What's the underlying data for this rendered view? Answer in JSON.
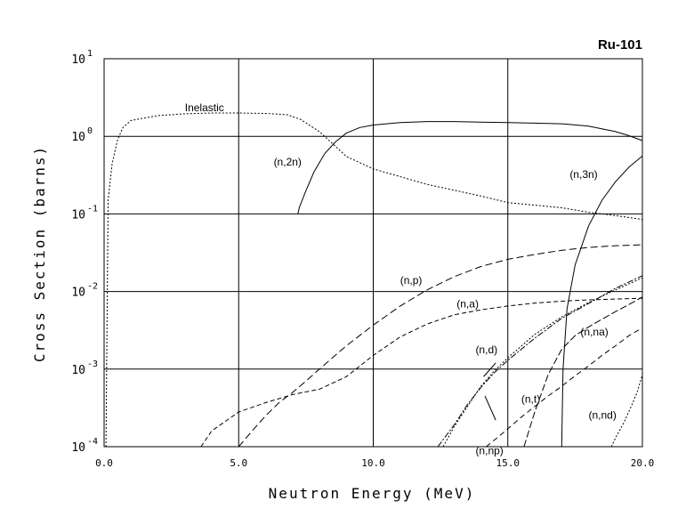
{
  "chart_data": {
    "type": "line",
    "title": "Ru-101",
    "xlabel": "Neutron Energy (MeV)",
    "ylabel": "Cross Section (barns)",
    "xlim": [
      0,
      20
    ],
    "ylim": [
      0.0001,
      10
    ],
    "yscale": "log",
    "grid": true,
    "x_ticks": [
      "0.0",
      "5.0",
      "10.0",
      "15.0",
      "20.0"
    ],
    "y_ticks": [
      {
        "base": "10",
        "exp": "1"
      },
      {
        "base": "10",
        "exp": "0"
      },
      {
        "base": "10",
        "exp": "-1"
      },
      {
        "base": "10",
        "exp": "-2"
      },
      {
        "base": "10",
        "exp": "-3"
      },
      {
        "base": "10",
        "exp": "-4"
      }
    ],
    "series": [
      {
        "name": "Inelastic",
        "dash": "2,2",
        "x": [
          0.07,
          0.15,
          0.3,
          0.5,
          0.7,
          1.0,
          2.0,
          3.0,
          4.0,
          5.0,
          6.0,
          6.8,
          7.3,
          8.0,
          8.5,
          9.0,
          10.0,
          12.0,
          14.0,
          15.0,
          17.0,
          18.0,
          19.0,
          20.0
        ],
        "y": [
          0.0001,
          0.15,
          0.45,
          0.9,
          1.3,
          1.6,
          1.85,
          1.95,
          2.0,
          2.0,
          1.97,
          1.9,
          1.65,
          1.15,
          0.8,
          0.55,
          0.38,
          0.24,
          0.17,
          0.14,
          0.12,
          0.105,
          0.095,
          0.085
        ]
      },
      {
        "name": "(n,2n)",
        "dash": "",
        "x": [
          7.2,
          7.25,
          7.5,
          7.8,
          8.2,
          8.6,
          9.0,
          9.5,
          10.0,
          11.0,
          12.0,
          13.0,
          14.0,
          15.0,
          16.0,
          17.0,
          18.0,
          19.0,
          19.5,
          20.0
        ],
        "y": [
          0.1,
          0.12,
          0.2,
          0.35,
          0.6,
          0.85,
          1.1,
          1.3,
          1.4,
          1.5,
          1.55,
          1.55,
          1.52,
          1.5,
          1.48,
          1.45,
          1.35,
          1.15,
          1.02,
          0.88
        ]
      },
      {
        "name": "(n,3n)",
        "dash": "",
        "x": [
          17.0,
          17.05,
          17.2,
          17.5,
          18.0,
          18.5,
          19.0,
          19.5,
          20.0
        ],
        "y": [
          0.0001,
          0.001,
          0.006,
          0.022,
          0.07,
          0.15,
          0.26,
          0.4,
          0.56
        ]
      },
      {
        "name": "(n,p)",
        "dash": "8,4",
        "x": [
          5.0,
          5.5,
          6.0,
          6.5,
          7.0,
          7.5,
          8.0,
          9.0,
          10.0,
          11.0,
          12.0,
          13.0,
          14.0,
          15.0,
          16.0,
          17.0,
          18.0,
          19.0,
          20.0
        ],
        "y": [
          0.0001,
          0.00016,
          0.00025,
          0.00037,
          0.0005,
          0.0007,
          0.001,
          0.002,
          0.0037,
          0.0065,
          0.0105,
          0.0155,
          0.021,
          0.026,
          0.03,
          0.034,
          0.037,
          0.039,
          0.04
        ]
      },
      {
        "name": "(n,a)",
        "dash": "5,3",
        "x": [
          3.6,
          4.0,
          5.0,
          6.0,
          7.0,
          8.0,
          9.0,
          10.0,
          11.0,
          12.0,
          13.0,
          14.0,
          15.0,
          16.0,
          17.0,
          18.0,
          19.0,
          20.0
        ],
        "y": [
          0.0001,
          0.00016,
          0.00028,
          0.00037,
          0.00047,
          0.00055,
          0.0008,
          0.0015,
          0.0026,
          0.0038,
          0.005,
          0.0058,
          0.0065,
          0.0071,
          0.0075,
          0.0078,
          0.008,
          0.0082
        ]
      },
      {
        "name": "(n,d)",
        "dash": "2,2",
        "x": [
          12.6,
          13.0,
          13.5,
          14.0,
          14.5,
          15.0,
          16.0,
          17.0,
          18.0,
          19.0,
          20.0
        ],
        "y": [
          0.0001,
          0.00018,
          0.00033,
          0.0006,
          0.00095,
          0.0014,
          0.0028,
          0.0047,
          0.0072,
          0.0105,
          0.015
        ]
      },
      {
        "name": "(n,np)",
        "dash": "7,2,2,2",
        "x": [
          12.4,
          13.0,
          13.5,
          14.0,
          14.5,
          15.0,
          16.0,
          17.0,
          18.0,
          19.0,
          20.0
        ],
        "y": [
          0.0001,
          0.00019,
          0.00035,
          0.00058,
          0.0009,
          0.0013,
          0.0025,
          0.0045,
          0.007,
          0.011,
          0.016
        ]
      },
      {
        "name": "(n,t)",
        "dash": "6,4",
        "x": [
          14.2,
          14.6,
          15.0,
          15.5,
          16.0,
          16.5,
          17.0,
          17.5,
          18.0,
          18.5,
          19.0,
          19.5,
          20.0
        ],
        "y": [
          0.0001,
          0.00013,
          0.00017,
          0.00024,
          0.00033,
          0.00045,
          0.0006,
          0.00082,
          0.0011,
          0.0015,
          0.002,
          0.0027,
          0.0034
        ]
      },
      {
        "name": "(n,na)",
        "dash": "8,3",
        "x": [
          15.6,
          16.0,
          16.5,
          17.0,
          17.5,
          18.0,
          18.5,
          19.0,
          19.5,
          20.0
        ],
        "y": [
          0.0001,
          0.00028,
          0.00085,
          0.0018,
          0.0027,
          0.0035,
          0.0044,
          0.0055,
          0.0068,
          0.0085
        ]
      },
      {
        "name": "(n,nd)",
        "dash": "2,2",
        "x": [
          18.85,
          19.0,
          19.3,
          19.6,
          19.8,
          20.0
        ],
        "y": [
          0.0001,
          0.00013,
          0.0002,
          0.00034,
          0.0005,
          0.00085
        ]
      }
    ],
    "annotations": [
      {
        "text": "Inelastic",
        "x": 3.0,
        "y": 2.1
      },
      {
        "text": "(n,2n)",
        "x": 6.3,
        "y": 0.42
      },
      {
        "text": "(n,3n)",
        "x": 17.3,
        "y": 0.29
      },
      {
        "text": "(n,p)",
        "x": 11.0,
        "y": 0.0125
      },
      {
        "text": "(n,a)",
        "x": 13.1,
        "y": 0.0062
      },
      {
        "text": "(n,d)",
        "x": 13.8,
        "y": 0.0016
      },
      {
        "text": "(n,na)",
        "x": 17.7,
        "y": 0.0027
      },
      {
        "text": "(n,t)",
        "x": 15.5,
        "y": 0.00037
      },
      {
        "text": "(n,nd)",
        "x": 18.0,
        "y": 0.00023
      },
      {
        "text": "(n,np)",
        "x": 13.8,
        "y": 8e-05
      }
    ],
    "leaders": [
      {
        "from": [
          14.55,
          0.0012
        ],
        "to": [
          14.1,
          0.0008
        ]
      },
      {
        "from": [
          14.15,
          0.00045
        ],
        "to": [
          14.55,
          0.00022
        ]
      }
    ]
  }
}
